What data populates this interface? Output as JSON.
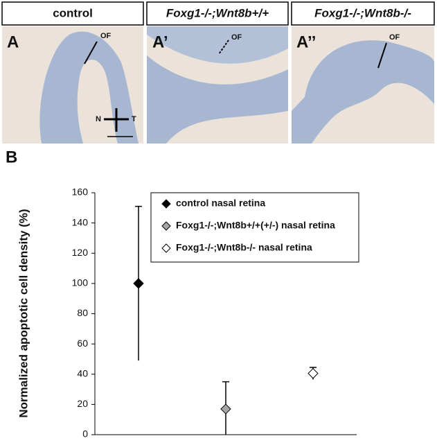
{
  "figure": {
    "panels": [
      {
        "header": "control",
        "label": "A",
        "annotations": [
          "OF",
          "N",
          "T"
        ]
      },
      {
        "header": "Foxg1-/-;Wnt8b+/+",
        "label": "A’",
        "annotations": [
          "OF"
        ]
      },
      {
        "header": "Foxg1-/-;Wnt8b-/-",
        "label": "A’’",
        "annotations": [
          "OF"
        ]
      }
    ]
  },
  "chart_data": {
    "type": "point",
    "panel_label": "B",
    "y_label": "Normalized apoptotic cell density (%)",
    "categories": [
      null,
      null,
      null
    ],
    "series": [
      {
        "name": "control nasal retina",
        "color": "#000000",
        "values": [
          100,
          null,
          null
        ],
        "errors": [
          51,
          null,
          null
        ]
      },
      {
        "name": "Foxg1-/-;Wnt8b+/+(+/-) nasal retina",
        "color": "#a6a6a6",
        "values": [
          null,
          17,
          null
        ],
        "errors": [
          null,
          18,
          null
        ]
      },
      {
        "name": "Foxg1-/-;Wnt8b-/- nasal retina",
        "color": "#ffffff",
        "values": [
          null,
          null,
          40.5
        ],
        "errors": [
          null,
          null,
          4
        ]
      }
    ],
    "ylim": [
      0,
      160
    ],
    "yticks": [
      0,
      20,
      40,
      60,
      80,
      100,
      120,
      140,
      160
    ],
    "grid": false,
    "legend": "upper right"
  }
}
